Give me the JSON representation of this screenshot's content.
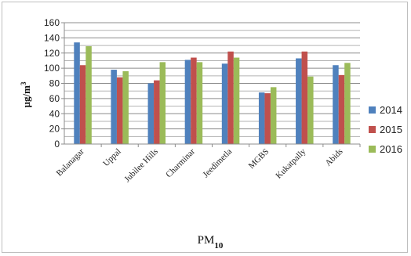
{
  "chart_data": {
    "type": "bar",
    "categories": [
      "Balanagar",
      "Uppal",
      "Jubilee Hills",
      "Charminar",
      "Jeedimetla",
      "MGBS",
      "Kukatpally",
      "Abids"
    ],
    "series": [
      {
        "name": "2014",
        "color": "#4f81bd",
        "values": [
          134,
          98,
          80,
          111,
          106,
          68,
          113,
          104
        ]
      },
      {
        "name": "2015",
        "color": "#c0504d",
        "values": [
          104,
          88,
          84,
          114,
          122,
          67,
          122,
          91
        ]
      },
      {
        "name": "2016",
        "color": "#9bbb59",
        "values": [
          129,
          96,
          108,
          108,
          114,
          75,
          89,
          107
        ]
      }
    ],
    "ylabel": {
      "main": "µg/m",
      "sup": "3"
    },
    "xlabel": {
      "main": "PM",
      "sub": "10"
    },
    "ylim": [
      0,
      160
    ],
    "yticks": [
      0,
      20,
      40,
      60,
      80,
      100,
      120,
      140,
      160
    ],
    "grid": true,
    "legend_position": "right"
  }
}
